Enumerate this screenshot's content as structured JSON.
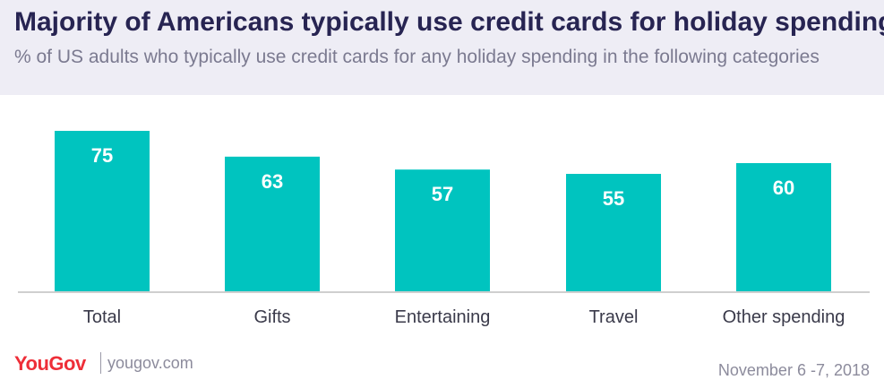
{
  "header": {
    "title": "Majority of Americans typically use credit cards for holiday spending",
    "subtitle": "% of US adults who typically use credit cards for any holiday spending in the following categories"
  },
  "chart_data": {
    "type": "bar",
    "title": "Majority of Americans typically use credit cards for holiday spending",
    "subtitle": "% of US adults who typically use credit cards for any holiday spending in the following categories",
    "categories": [
      "Total",
      "Gifts",
      "Entertaining",
      "Travel",
      "Other spending"
    ],
    "values": [
      75,
      63,
      57,
      55,
      60
    ],
    "xlabel": "",
    "ylabel": "",
    "ylim": [
      0,
      75
    ],
    "grid": false,
    "legend": "none",
    "bar_color": "#00c4bf",
    "value_label_color": "#ffffff"
  },
  "footer": {
    "brand": "YouGov",
    "url": "yougov.com",
    "date": "November 6 -7, 2018"
  },
  "colors": {
    "title": "#272452",
    "subtitle": "#7b7a90",
    "header_bg": "#eeedf5",
    "brand": "#ee2e38",
    "axis": "#cfcfcf"
  }
}
